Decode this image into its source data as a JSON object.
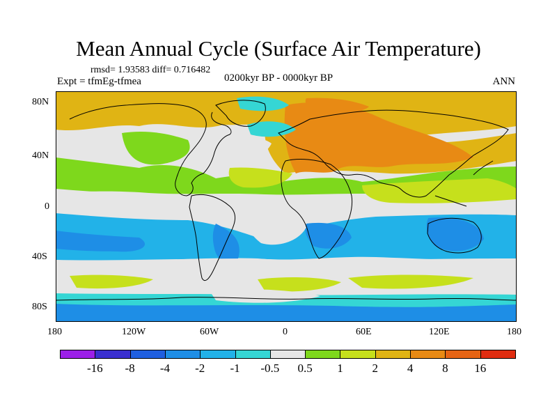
{
  "title": "Mean Annual Cycle (Surface Air Temperature)",
  "stats_text": "rmsd= 1.93583 diff= 0.716482",
  "experiment_label": "Expt = tfmEg-tfmea",
  "period_label": "0200kyr BP - 0000kyr BP",
  "season_label": "ANN",
  "lat_ticks": [
    "80N",
    "40N",
    "0",
    "40S",
    "80S"
  ],
  "lon_ticks": [
    "180",
    "120W",
    "60W",
    "0",
    "60E",
    "120E",
    "180"
  ],
  "colorbar": {
    "labels": [
      "-16",
      "-8",
      "-4",
      "-2",
      "-1",
      "-0.5",
      "0.5",
      "1",
      "2",
      "4",
      "8",
      "16"
    ],
    "colors": [
      "#9c1fe8",
      "#3a2fd0",
      "#1f5fe0",
      "#1e8ee6",
      "#22b2e8",
      "#35d6d4",
      "#e6e6e6",
      "#7ed81c",
      "#c6e01c",
      "#e0b414",
      "#e88a14",
      "#e66414",
      "#e02c10"
    ]
  },
  "palette": {
    "lt_m4": "#1f5fe0",
    "lt_m2": "#1e8ee6",
    "lt_m1": "#22b2e8",
    "lt_m05": "#35d6d4",
    "zero": "#e6e6e6",
    "gt_05": "#7ed81c",
    "gt_1": "#c6e01c",
    "gt_2": "#e0b414",
    "gt_4": "#e88a14",
    "coast": "#000000"
  }
}
